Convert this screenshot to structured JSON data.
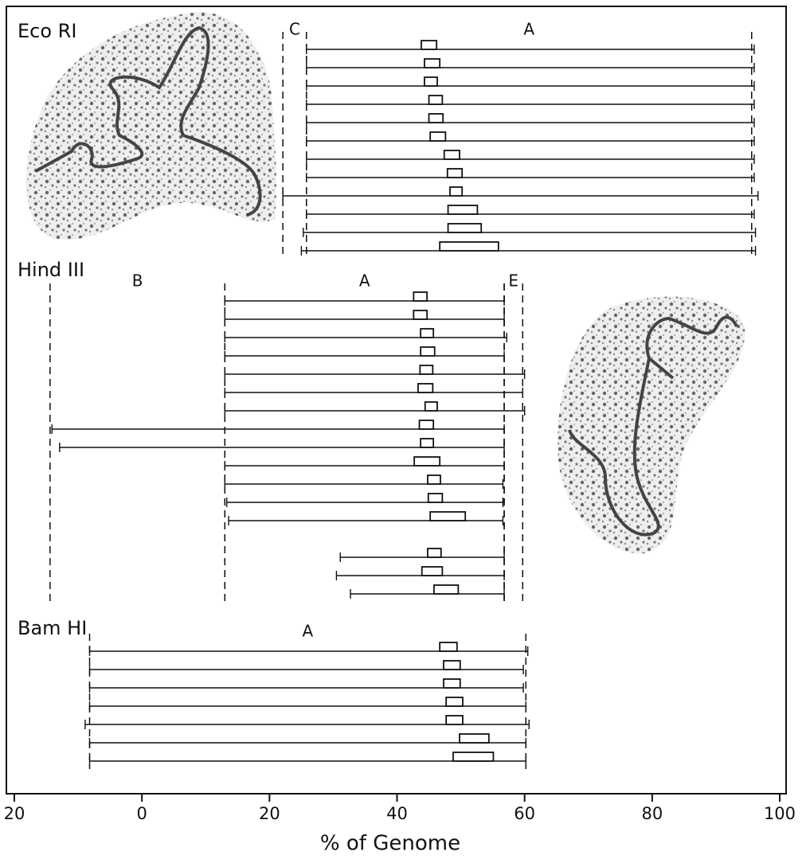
{
  "chart_data": {
    "type": "molecule-map",
    "x_label": "% of Genome",
    "xlim": [
      -21,
      101
    ],
    "xticks": [
      {
        "value": -20,
        "label": "20"
      },
      0,
      20,
      40,
      60,
      80,
      100
    ],
    "panels": [
      {
        "title": "Eco RI",
        "fragments": [
          {
            "name": "C",
            "from": 22.1,
            "to": 25.8
          },
          {
            "name": "A",
            "from": 25.8,
            "to": 95.6
          }
        ],
        "groups": [
          [
            {
              "start": 25.8,
              "end": 96,
              "loop": [
                43.8,
                46.2
              ]
            },
            {
              "start": 25.8,
              "end": 96,
              "loop": [
                44.3,
                46.7
              ]
            },
            {
              "start": 25.8,
              "end": 96,
              "loop": [
                44.3,
                46.3
              ]
            },
            {
              "start": 25.8,
              "end": 96,
              "loop": [
                45,
                47.1
              ]
            },
            {
              "start": 25.8,
              "end": 96,
              "loop": [
                45,
                47.2
              ]
            },
            {
              "start": 25.8,
              "end": 96,
              "loop": [
                45.2,
                47.6
              ]
            },
            {
              "start": 25.8,
              "end": 96,
              "loop": [
                47.4,
                49.8
              ]
            },
            {
              "start": 25.8,
              "end": 96,
              "loop": [
                47.9,
                50.2
              ]
            },
            {
              "start": 22.1,
              "end": 96.6,
              "loop": [
                48.3,
                50.2
              ]
            },
            {
              "start": 25.8,
              "end": 96,
              "loop": [
                48,
                52.6
              ]
            },
            {
              "start": 25.3,
              "end": 96.2,
              "loop": [
                48,
                53.2
              ]
            },
            {
              "start": 25,
              "end": 96.2,
              "loop": [
                46.7,
                55.9
              ]
            }
          ]
        ]
      },
      {
        "title": "Hind III",
        "fragments": [
          {
            "name": "B",
            "from": -14.4,
            "to": 13
          },
          {
            "name": "A",
            "from": 13,
            "to": 56.8
          },
          {
            "name": "E",
            "from": 56.8,
            "to": 59.7
          }
        ],
        "groups": [
          [
            {
              "start": 13,
              "end": 56.8,
              "loop": [
                42.6,
                44.7
              ]
            },
            {
              "start": 13,
              "end": 56.8,
              "loop": [
                42.6,
                44.7
              ]
            },
            {
              "start": 13,
              "end": 57.2,
              "loop": [
                43.7,
                45.7
              ]
            },
            {
              "start": 13,
              "end": 56.8,
              "loop": [
                43.7,
                45.9
              ]
            },
            {
              "start": 13,
              "end": 60,
              "loop": [
                43.6,
                45.6
              ]
            },
            {
              "start": 13,
              "end": 59.7,
              "loop": [
                43.3,
                45.6
              ]
            },
            {
              "start": 13,
              "end": 60,
              "loop": [
                44.4,
                46.3
              ]
            },
            {
              "start": -14.1,
              "end": 56.8,
              "loop": [
                43.5,
                45.7
              ]
            },
            {
              "start": -12.9,
              "end": 56.8,
              "loop": [
                43.7,
                45.7
              ]
            },
            {
              "start": 13,
              "end": 56.8,
              "loop": [
                42.7,
                46.7
              ]
            },
            {
              "start": 13,
              "end": 56.6,
              "loop": [
                44.8,
                46.8
              ]
            },
            {
              "start": 13.3,
              "end": 56.6,
              "loop": [
                44.9,
                47.1
              ]
            },
            {
              "start": 13.6,
              "end": 56.6,
              "loop": [
                45.2,
                50.7
              ]
            }
          ],
          [
            {
              "start": 31.1,
              "end": 56.8,
              "loop": [
                44.8,
                46.9
              ]
            },
            {
              "start": 30.5,
              "end": 56.8,
              "loop": [
                43.9,
                47.1
              ]
            },
            {
              "start": 32.7,
              "end": 56.8,
              "loop": [
                45.8,
                49.6
              ]
            }
          ]
        ]
      },
      {
        "title": "Bam HI",
        "fragments": [
          {
            "name": "A",
            "from": -8.2,
            "to": 60.2
          }
        ],
        "groups": [
          [
            {
              "start": -8.2,
              "end": 60.5,
              "loop": [
                46.7,
                49.4
              ]
            },
            {
              "start": -8.2,
              "end": 59.8,
              "loop": [
                47.3,
                49.9
              ]
            },
            {
              "start": -8.2,
              "end": 59.8,
              "loop": [
                47.3,
                49.9
              ]
            },
            {
              "start": -8.2,
              "end": 60.2,
              "loop": [
                47.7,
                50.3
              ]
            },
            {
              "start": -8.9,
              "end": 60.7,
              "loop": [
                47.7,
                50.3
              ]
            },
            {
              "start": -8.2,
              "end": 60.2,
              "loop": [
                49.8,
                54.4
              ]
            },
            {
              "start": -8.2,
              "end": 60.2,
              "loop": [
                48.8,
                55.1
              ]
            }
          ]
        ]
      }
    ]
  }
}
